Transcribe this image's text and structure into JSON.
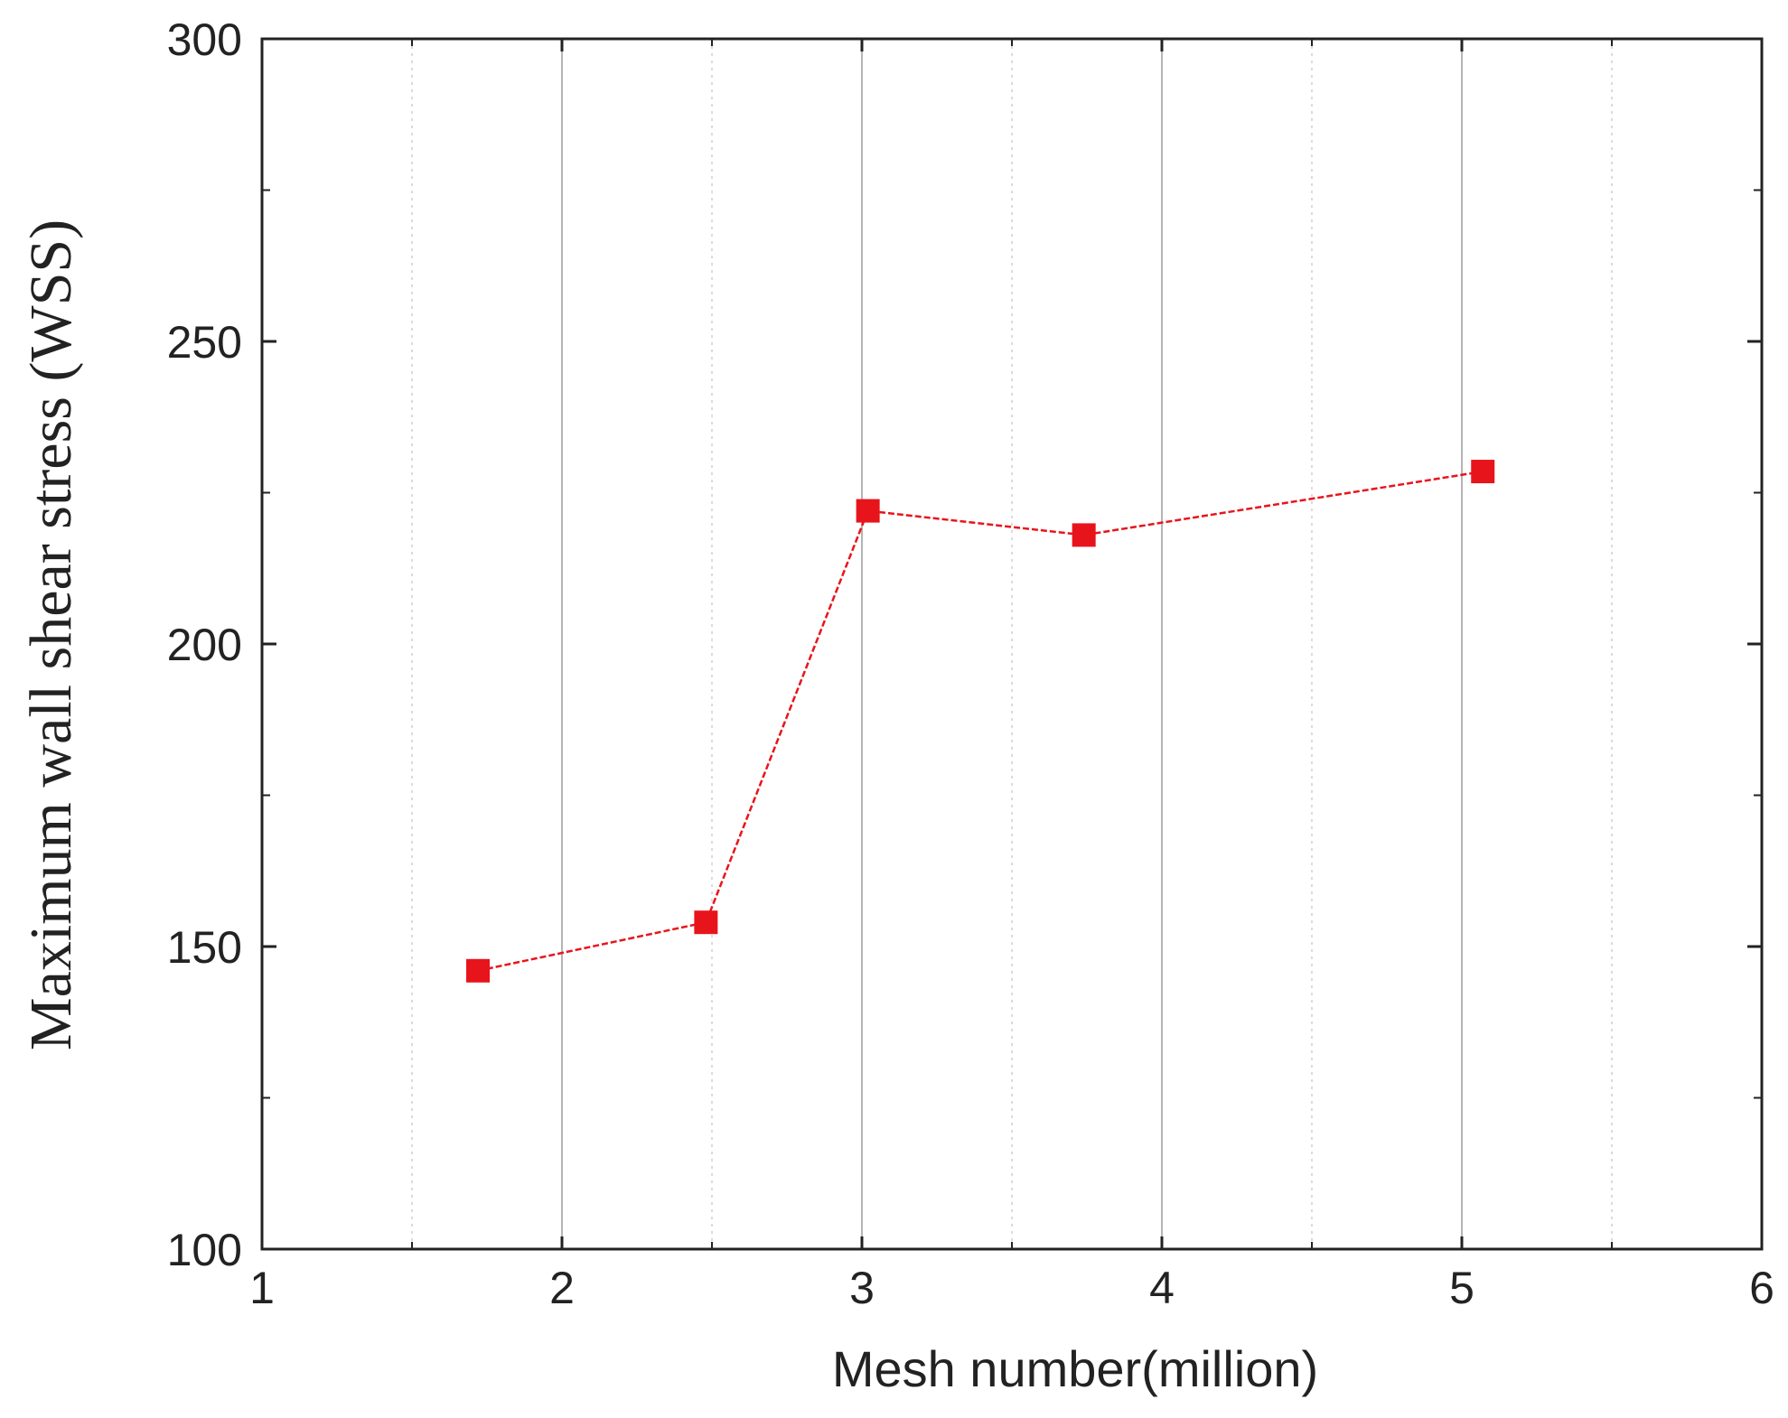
{
  "chart_data": {
    "type": "line",
    "title": "",
    "xlabel": "Mesh number(million)",
    "ylabel": "Maximum wall shear stress (WSS)",
    "xlim": [
      1,
      6
    ],
    "ylim": [
      100,
      300
    ],
    "x_ticks": [
      1,
      2,
      3,
      4,
      5,
      6
    ],
    "x_tick_labels": [
      "1",
      "2",
      "3",
      "4",
      "5",
      "6"
    ],
    "y_ticks": [
      100,
      150,
      200,
      250,
      300
    ],
    "y_tick_labels": [
      "100",
      "150",
      "200",
      "250",
      "300"
    ],
    "grid": true,
    "legend": "none",
    "series": [
      {
        "color": "#e8141c",
        "marker": "square",
        "line_style": "dashed",
        "x": [
          1.72,
          2.48,
          3.02,
          3.74,
          5.07
        ],
        "y": [
          146,
          154,
          222,
          218,
          228.5
        ]
      }
    ]
  }
}
